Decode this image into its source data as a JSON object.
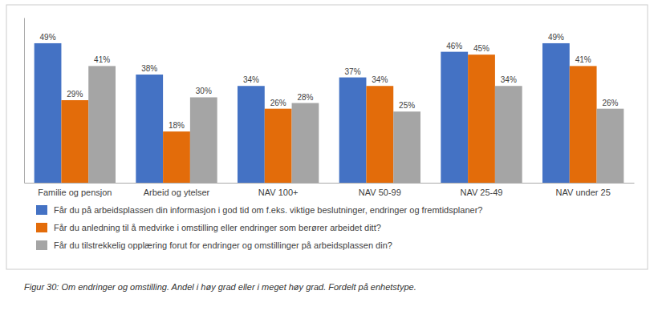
{
  "chart_data": {
    "type": "bar",
    "categories": [
      "Familie og pensjon",
      "Arbeid og ytelser",
      "NAV 100+",
      "NAV 50-99",
      "NAV 25-49",
      "NAV under 25"
    ],
    "series": [
      {
        "name": "Får du på arbeidsplassen din informasjon i god tid om f.eks. viktige beslutninger, endringer og fremtidsplaner?",
        "color": "#4472C4",
        "values": [
          49,
          38,
          34,
          37,
          46,
          49
        ],
        "value_labels": [
          "49%",
          "38%",
          "34%",
          "37%",
          "46%",
          "49%"
        ]
      },
      {
        "name": "Får du anledning til å medvirke i omstilling eller endringer som berører arbeidet ditt?",
        "color": "#E36C0A",
        "values": [
          29,
          18,
          26,
          34,
          45,
          41
        ],
        "value_labels": [
          "29%",
          "18%",
          "26%",
          "34%",
          "45%",
          "41%"
        ]
      },
      {
        "name": "Får du tilstrekkelig opplæring forut for endringer og omstillinger på arbeidsplassen din?",
        "color": "#A5A5A5",
        "values": [
          41,
          30,
          28,
          25,
          34,
          26
        ],
        "value_labels": [
          "41%",
          "30%",
          "28%",
          "25%",
          "34%",
          "26%"
        ]
      }
    ],
    "ylim": [
      0,
      58
    ],
    "caption": "Figur 30: Om endringer og omstilling. Andel i høy grad eller i meget høy grad. Fordelt på enhetstype.",
    "data_labels": true,
    "tick_labels": "x",
    "grid": false,
    "legend": "bottom"
  }
}
